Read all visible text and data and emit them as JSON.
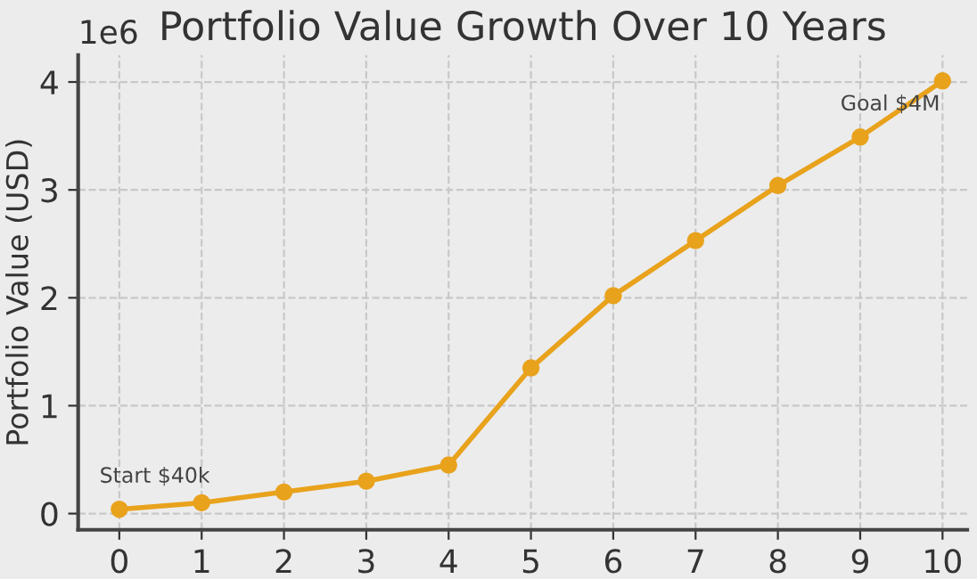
{
  "chart_data": {
    "type": "line",
    "title": "Portfolio Value Growth Over 10 Years",
    "ylabel": "Portfolio Value (USD)",
    "x": [
      0,
      1,
      2,
      3,
      4,
      5,
      6,
      7,
      8,
      9,
      10
    ],
    "series": [
      {
        "color": "#e8a21c",
        "values": [
          0.04,
          0.1,
          0.2,
          0.3,
          0.45,
          1.35,
          2.02,
          2.53,
          3.04,
          3.49,
          4.01
        ]
      }
    ],
    "xlim": [
      -0.5,
      10.3
    ],
    "xticks": [
      0,
      1,
      2,
      3,
      4,
      5,
      6,
      7,
      8,
      9,
      10
    ],
    "ylim": [
      -0.15,
      4.25
    ],
    "yticks": [
      0,
      1,
      2,
      3,
      4
    ],
    "annotations": [
      "1e6",
      {
        "text": "Start $40k",
        "x": 0,
        "y": 0.04
      },
      {
        "text": "Goal $4M",
        "x": 9,
        "y": 3.49
      }
    ],
    "grid": true,
    "marker": "circle",
    "line_style": "solid",
    "legend": false
  }
}
